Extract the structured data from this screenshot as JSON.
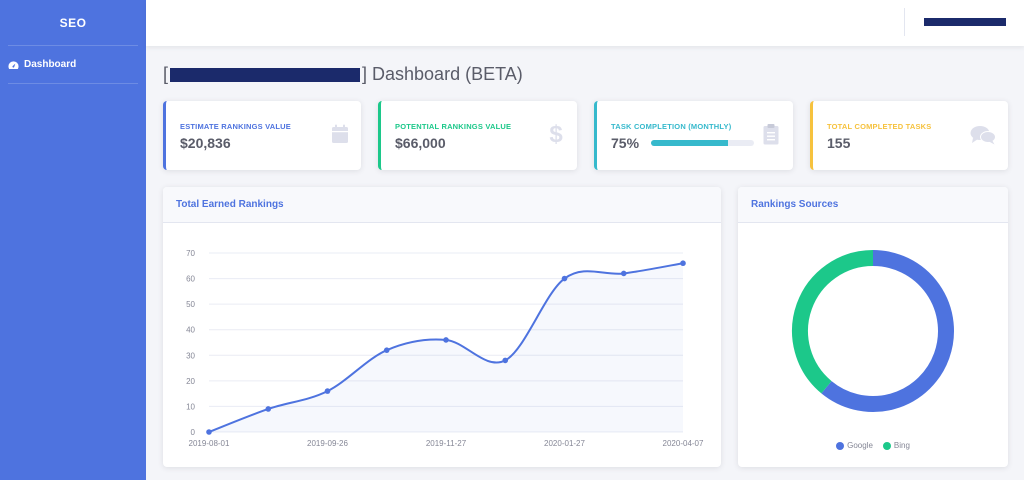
{
  "sidebar": {
    "brand": "SEO",
    "items": [
      {
        "label": "Dashboard",
        "icon": "tachometer-icon"
      }
    ]
  },
  "page": {
    "title_open": "[",
    "title_close": "] Dashboard (BETA)"
  },
  "cards": [
    {
      "label": "ESTIMATE RANKINGS VALUE",
      "value": "$20,836",
      "color": "#4e73df",
      "icon": "calendar-icon"
    },
    {
      "label": "POTENTIAL RANKINGS VALUE",
      "value": "$66,000",
      "color": "#1cc88a",
      "icon": "dollar-icon"
    },
    {
      "label": "TASK COMPLETION (MONTHLY)",
      "value": "75%",
      "color": "#36b9cc",
      "icon": "clipboard-icon",
      "progress": 0.75
    },
    {
      "label": "TOTAL COMPLETED TASKS",
      "value": "155",
      "color": "#f6c23e",
      "icon": "comments-icon"
    }
  ],
  "line_panel": {
    "title": "Total Earned Rankings"
  },
  "pie_panel": {
    "title": "Rankings Sources"
  },
  "chart_data": [
    {
      "type": "area",
      "x_tick_labels": [
        "2019-08-01",
        "2019-09-26",
        "2019-11-27",
        "2020-01-27",
        "2020-04-07"
      ],
      "ylim": [
        0,
        70
      ],
      "y_ticks": [
        0,
        10,
        20,
        30,
        40,
        50,
        60,
        70
      ],
      "grid": true,
      "color": "#4e73df",
      "points": [
        0,
        9,
        16,
        32,
        36,
        28,
        60,
        62,
        66
      ]
    },
    {
      "type": "pie",
      "style": "doughnut",
      "legend_position": "bottom",
      "series": [
        {
          "name": "Google",
          "value": 61,
          "color": "#4e73df"
        },
        {
          "name": "Bing",
          "value": 39,
          "color": "#1cc88a"
        }
      ]
    }
  ]
}
